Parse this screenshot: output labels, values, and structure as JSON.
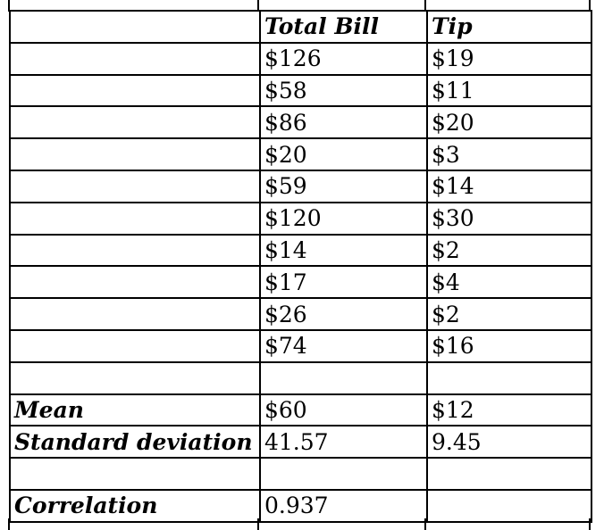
{
  "table": {
    "rows": [
      [
        "",
        "Total Bill",
        "Tip"
      ],
      [
        "",
        "$126",
        "$19"
      ],
      [
        "",
        "$58",
        "$11"
      ],
      [
        "",
        "$86",
        "$20"
      ],
      [
        "",
        "$20",
        "$3"
      ],
      [
        "",
        "$59",
        "$14"
      ],
      [
        "",
        "$120",
        "$30"
      ],
      [
        "",
        "$14",
        "$2"
      ],
      [
        "",
        "$17",
        "$4"
      ],
      [
        "",
        "$26",
        "$2"
      ],
      [
        "",
        "$74",
        "$16"
      ],
      [
        "",
        "",
        ""
      ],
      [
        "Mean",
        "$60",
        "$12"
      ],
      [
        "Standard deviation",
        "41.57",
        "9.45"
      ],
      [
        "",
        "",
        ""
      ],
      [
        "Correlation",
        "0.937",
        ""
      ]
    ]
  },
  "colors": {
    "border": "#000000",
    "text": "#000000",
    "background": "#ffffff"
  }
}
